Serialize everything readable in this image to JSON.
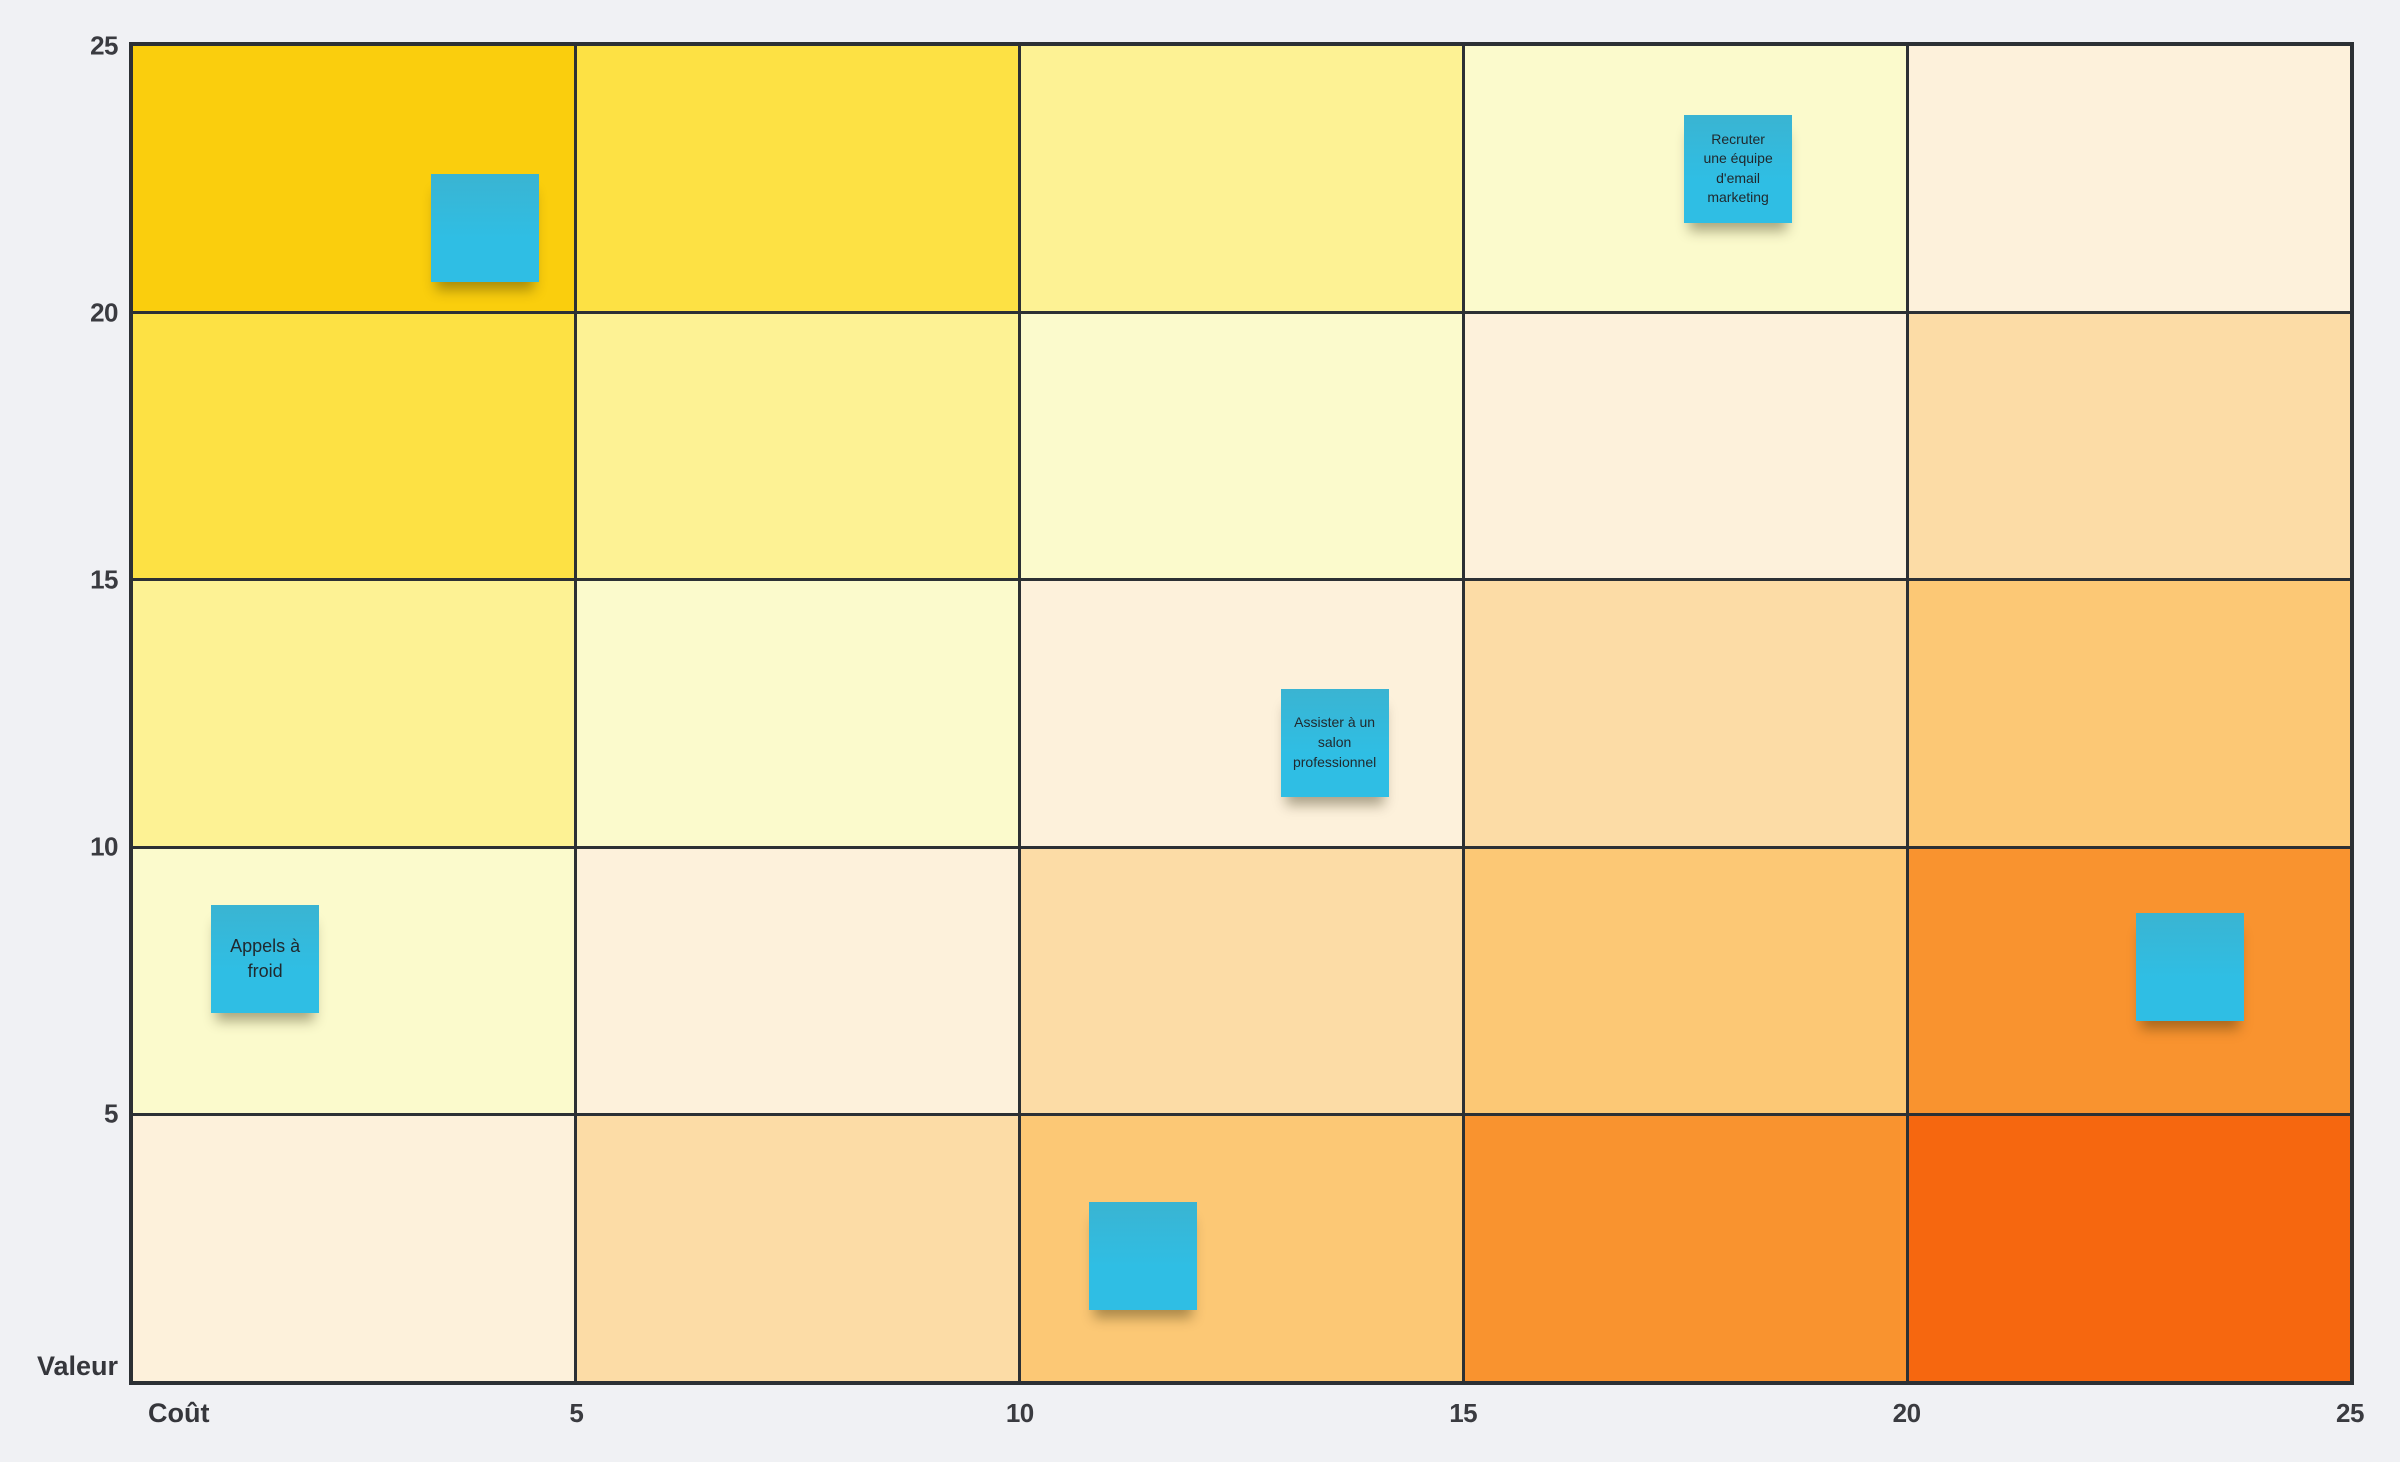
{
  "canvas": {
    "background_color": "#F0F1F4",
    "grid_line_color": "#2C3034",
    "note_color": "#2FBEE4"
  },
  "chart_data": {
    "type": "heatmap",
    "title": "",
    "xlabel": "Coût",
    "ylabel": "Valeur",
    "x_ticks": [
      "5",
      "10",
      "15",
      "20",
      "25"
    ],
    "y_ticks": [
      "25",
      "20",
      "15",
      "10",
      "5"
    ],
    "xlim": [
      0,
      25
    ],
    "ylim": [
      0,
      25
    ],
    "grid_rows": 5,
    "grid_cols": 5,
    "grid_on": true,
    "legend": "none",
    "palette_diagonal": [
      "#FACE0D",
      "#FDE144",
      "#FDF294",
      "#FBFACC",
      "#FDF1DB",
      "#FCDCA6",
      "#FCC875",
      "#F9932F",
      "#F6670F"
    ],
    "cell_colors": [
      [
        "#FACE0D",
        "#FDE144",
        "#FDF294",
        "#FBFACC",
        "#FDF1DB"
      ],
      [
        "#FDE144",
        "#FDF294",
        "#FBFACC",
        "#FDF1DB",
        "#FCDCA6"
      ],
      [
        "#FDF294",
        "#FBFACC",
        "#FDF1DB",
        "#FCDCA6",
        "#FCC875"
      ],
      [
        "#FBFACC",
        "#FDF1DB",
        "#FCDCA6",
        "#FCC875",
        "#F9932F"
      ],
      [
        "#FDF1DB",
        "#FCDCA6",
        "#FCC875",
        "#F9932F",
        "#F6670F"
      ]
    ],
    "notes": [
      {
        "label": "",
        "cost": 3.97,
        "value": 21.6
      },
      {
        "label": "Recruter\nune équipe\nd'email\nmarketing",
        "cost": 18.1,
        "value": 22.7
      },
      {
        "label": "Assister à un\nsalon\nprofessionnel",
        "cost": 13.55,
        "value": 11.95
      },
      {
        "label": "Appels à\nfroid",
        "cost": 1.49,
        "value": 7.9
      },
      {
        "label": "",
        "cost": 23.2,
        "value": 7.75
      },
      {
        "label": "",
        "cost": 11.39,
        "value": 2.35
      }
    ]
  }
}
